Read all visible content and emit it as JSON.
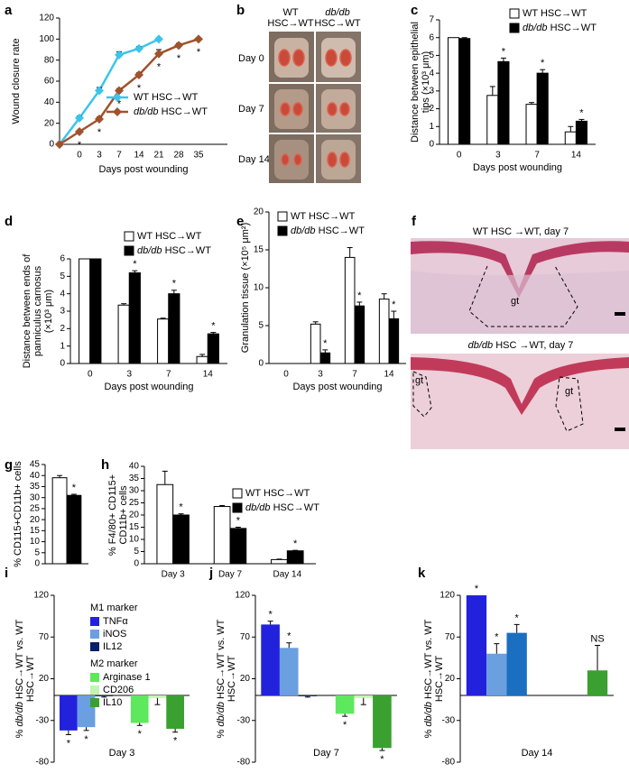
{
  "chart_data": [
    {
      "panel": "a",
      "type": "line",
      "ylabel": [
        "Wound closure rate"
      ],
      "xlabel": "Days post wounding",
      "categories": [
        null,
        "0",
        "3",
        "7",
        "14",
        "21",
        "28",
        "35"
      ],
      "ylim": [
        0,
        120
      ],
      "yticks": [
        0,
        20,
        40,
        60,
        80,
        100,
        120
      ],
      "legend": "lower right",
      "series": [
        {
          "name": "WT HSC→WT",
          "color": "#3cc4ec",
          "values": [
            0,
            25,
            51,
            85,
            91,
            100,
            null,
            null
          ],
          "errors": [
            0,
            2,
            3,
            3,
            2,
            0,
            null,
            null
          ]
        },
        {
          "name": "db/db HSC→WT",
          "color": "#a0522d",
          "values": [
            0,
            12,
            24,
            51,
            66,
            86,
            94,
            100
          ],
          "errors": [
            0,
            1,
            2,
            2,
            2,
            4,
            2,
            0
          ],
          "significance": [
            null,
            "*",
            "*",
            "*",
            "*",
            "*",
            "*",
            "*"
          ]
        }
      ]
    },
    {
      "panel": "c",
      "type": "bar",
      "ylabel": [
        "Distance between epithelial",
        "tips (×10³ μm)"
      ],
      "xlabel": "Days post wounding",
      "categories": [
        "0",
        "3",
        "7",
        "14"
      ],
      "ylim": [
        0,
        7
      ],
      "yticks": [
        0,
        1,
        2,
        3,
        4,
        5,
        6,
        7
      ],
      "legend": "upper right",
      "series": [
        {
          "name": "WT HSC→WT",
          "color": "#ffffff",
          "values": [
            6,
            2.75,
            2.25,
            0.7
          ],
          "errors": [
            0,
            0.5,
            0.1,
            0.3
          ]
        },
        {
          "name": "db/db HSC→WT",
          "color": "#000000",
          "values": [
            5.95,
            4.65,
            4,
            1.3
          ],
          "errors": [
            0.05,
            0.2,
            0.2,
            0.1
          ],
          "significance": [
            null,
            "*",
            "*",
            "*"
          ]
        }
      ]
    },
    {
      "panel": "d",
      "type": "bar",
      "ylabel": [
        "Distance between ends of",
        "panniculus carnosus",
        "(×10³ μm)"
      ],
      "xlabel": "Days post wounding",
      "categories": [
        "0",
        "3",
        "7",
        "14"
      ],
      "ylim": [
        0,
        6
      ],
      "yticks": [
        0,
        1,
        2,
        3,
        4,
        5,
        6
      ],
      "legend": "upper right",
      "series": [
        {
          "name": "WT HSC→WT",
          "color": "#ffffff",
          "values": [
            6,
            3.35,
            2.55,
            0.4
          ],
          "errors": [
            0,
            0.08,
            0.05,
            0.12
          ]
        },
        {
          "name": "db/db HSC→WT",
          "color": "#000000",
          "values": [
            6,
            5.2,
            4,
            1.7
          ],
          "errors": [
            0,
            0.12,
            0.2,
            0.08
          ],
          "significance": [
            null,
            "*",
            "*",
            "*"
          ]
        }
      ]
    },
    {
      "panel": "e",
      "type": "bar",
      "ylabel": [
        "Granulation tissue (×10⁵ μm²)"
      ],
      "xlabel": "Days post wounding",
      "categories": [
        "0",
        "3",
        "7",
        "14"
      ],
      "ylim": [
        0,
        20
      ],
      "yticks": [
        0,
        5,
        10,
        15,
        20
      ],
      "legend": "upper left",
      "series": [
        {
          "name": "WT HSC→WT",
          "color": "#ffffff",
          "values": [
            0,
            5.2,
            14,
            8.5
          ],
          "errors": [
            0,
            0.3,
            1.3,
            0.7
          ]
        },
        {
          "name": "db/db HSC→WT",
          "color": "#000000",
          "values": [
            0,
            1.4,
            7.6,
            5.9
          ],
          "errors": [
            0,
            0.4,
            0.5,
            1
          ],
          "significance": [
            null,
            "*",
            "*",
            "*"
          ]
        }
      ]
    },
    {
      "panel": "g",
      "type": "bar",
      "ylabel": [
        "% CD115+CD11b+ cells"
      ],
      "categories": [
        null
      ],
      "ylim": [
        0,
        45
      ],
      "yticks": [
        0,
        5,
        10,
        15,
        20,
        25,
        30,
        35,
        40,
        45
      ],
      "series": [
        {
          "color": "#ffffff",
          "values": [
            39
          ],
          "errors": [
            1
          ]
        },
        {
          "color": "#000000",
          "values": [
            31
          ],
          "errors": [
            0.5
          ],
          "significance": [
            "*"
          ]
        }
      ]
    },
    {
      "panel": "h",
      "type": "bar",
      "ylabel": [
        "% F4/80+ CD115+",
        "CD11b+ cells"
      ],
      "categories": [
        "Day 3",
        "Day 7",
        "Day 14"
      ],
      "ylim": [
        0,
        40
      ],
      "yticks": [
        0,
        5,
        10,
        15,
        20,
        25,
        30,
        35,
        40
      ],
      "legend": "upper right",
      "series": [
        {
          "name": "WT HSC→WT",
          "color": "#ffffff",
          "values": [
            32.5,
            23.5,
            1.7
          ],
          "errors": [
            5.5,
            0.4,
            0.2
          ]
        },
        {
          "name": "db/db HSC→WT",
          "color": "#000000",
          "values": [
            20,
            14.5,
            5.3
          ],
          "errors": [
            0.5,
            0.5,
            0.2
          ],
          "significance": [
            "*",
            "*",
            "*"
          ]
        }
      ]
    },
    {
      "panel": "i",
      "type": "bar",
      "ylabel": [
        "% db/db HSC→WT vs. WT",
        "HSC→WT"
      ],
      "categories": [
        "Day 3"
      ],
      "ylim": [
        -80,
        120
      ],
      "yticks": [
        -80,
        -30,
        20,
        70,
        120
      ],
      "legend": "upper left",
      "legend_groups": [
        "M1 marker",
        "M2 marker"
      ],
      "series": [
        {
          "name": "TNFα",
          "color": "#2222dd",
          "values": [
            -42
          ],
          "errors": [
            5
          ],
          "significance": [
            "*"
          ]
        },
        {
          "name": "iNOS",
          "color": "#6a9fe0",
          "values": [
            -38
          ],
          "errors": [
            4
          ],
          "significance": [
            "*"
          ]
        },
        {
          "name": "IL12",
          "color": "#0a1f6b",
          "values": [
            -1
          ],
          "errors": [
            1
          ]
        },
        {
          "name": "Arginase 1",
          "color": "#5ee85e",
          "values": [
            -33
          ],
          "errors": [
            3
          ],
          "significance": [
            "*"
          ]
        },
        {
          "name": "CD206",
          "color": "#c2f5b0",
          "values": [
            -3
          ],
          "errors": [
            8
          ]
        },
        {
          "name": "IL10",
          "color": "#3aa030",
          "values": [
            -40
          ],
          "errors": [
            4
          ],
          "significance": [
            "*"
          ]
        }
      ]
    },
    {
      "panel": "j",
      "type": "bar",
      "ylabel": [
        "% db/db HSC→WT vs. WT",
        "HSC→WT"
      ],
      "categories": [
        "Day 7"
      ],
      "ylim": [
        -80,
        120
      ],
      "yticks": [
        -80,
        -30,
        20,
        70,
        120
      ],
      "series": [
        {
          "color": "#2222dd",
          "values": [
            85
          ],
          "errors": [
            4
          ],
          "significance": [
            "*"
          ]
        },
        {
          "color": "#6a9fe0",
          "values": [
            57
          ],
          "errors": [
            6
          ],
          "significance": [
            "*"
          ]
        },
        {
          "color": "#0a1f6b",
          "values": [
            -1
          ],
          "errors": [
            1
          ]
        },
        {
          "color": "#5ee85e",
          "values": [
            -22
          ],
          "errors": [
            3
          ],
          "significance": [
            "*"
          ]
        },
        {
          "color": "#c2f5b0",
          "values": [
            -3
          ],
          "errors": [
            8
          ]
        },
        {
          "color": "#3aa030",
          "values": [
            -63
          ],
          "errors": [
            3
          ],
          "significance": [
            "*"
          ]
        }
      ]
    },
    {
      "panel": "k",
      "type": "bar",
      "ylabel": [
        "% db/db HSC→WT vs. WT",
        "HSC→WT"
      ],
      "categories": [
        "Day 14"
      ],
      "ylim": [
        -80,
        120
      ],
      "yticks": [
        -80,
        -30,
        20,
        70,
        120
      ],
      "series": [
        {
          "color": "#2222dd",
          "values": [
            120
          ],
          "errors": [
            0
          ],
          "significance": [
            "*"
          ]
        },
        {
          "color": "#6a9fe0",
          "values": [
            50
          ],
          "errors": [
            12
          ],
          "significance": [
            "*"
          ]
        },
        {
          "color": "#1a6fc0",
          "values": [
            75
          ],
          "errors": [
            10
          ],
          "significance": [
            "*"
          ]
        },
        {
          "color": "#5ee85e",
          "values": [
            0
          ],
          "errors": [
            0
          ]
        },
        {
          "color": "#c2f5b0",
          "values": [
            0
          ],
          "errors": [
            0
          ]
        },
        {
          "color": "#3aa030",
          "values": [
            30
          ],
          "errors": [
            30
          ],
          "significance": [
            "NS"
          ]
        }
      ]
    }
  ],
  "image_panels": [
    {
      "panel": "b",
      "column_labels": [
        [
          "WT",
          "HSC→WT"
        ],
        [
          "db/db",
          "HSC→WT"
        ]
      ],
      "row_labels": [
        "Day 0",
        "Day 7",
        "Day 14"
      ]
    },
    {
      "panel": "f",
      "titles": [
        "WT HSC →WT, day 7",
        "db/db HSC →WT, day 7"
      ],
      "labels": [
        "gt",
        "gt",
        "gt"
      ]
    }
  ]
}
